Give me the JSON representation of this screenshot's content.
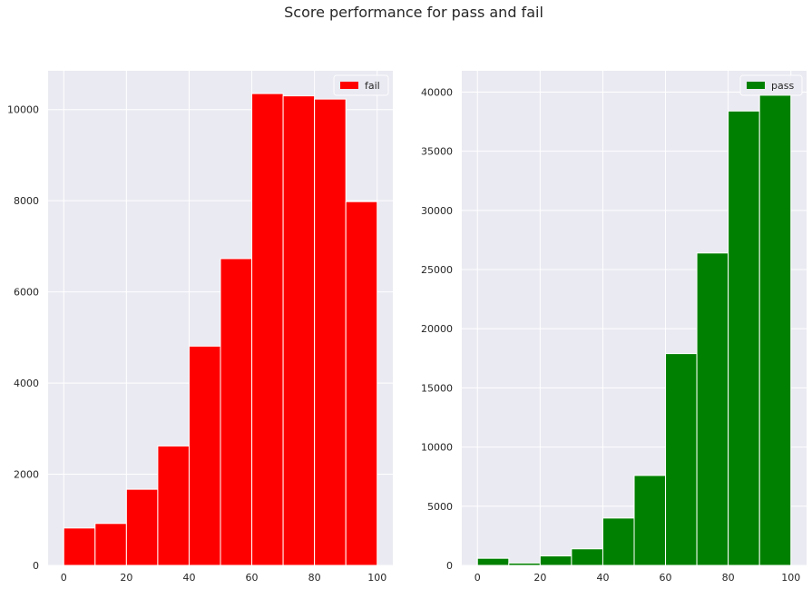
{
  "figure": {
    "suptitle": "Score performance for pass and fail",
    "background": "#ffffff",
    "axes_facecolor": "#eaeaf2",
    "grid_color": "#ffffff"
  },
  "chart_data": [
    {
      "type": "bar",
      "title": "",
      "xlabel": "",
      "ylabel": "",
      "bin_edges": [
        0,
        10,
        20,
        30,
        40,
        50,
        60,
        70,
        80,
        90,
        100
      ],
      "series": [
        {
          "name": "fail",
          "color": "#ff0000",
          "values": [
            820,
            920,
            1670,
            2620,
            4810,
            6730,
            10350,
            10300,
            10230,
            7980
          ]
        }
      ],
      "xlim": [
        -5,
        105
      ],
      "ylim": [
        0,
        10850
      ],
      "xticks": [
        0,
        20,
        40,
        60,
        80,
        100
      ],
      "yticks": [
        0,
        2000,
        4000,
        6000,
        8000,
        10000
      ],
      "grid": true,
      "legend": "top-right"
    },
    {
      "type": "bar",
      "title": "",
      "xlabel": "",
      "ylabel": "",
      "bin_edges": [
        0,
        10,
        20,
        30,
        40,
        50,
        60,
        70,
        80,
        90,
        100
      ],
      "series": [
        {
          "name": "pass",
          "color": "#008000",
          "values": [
            600,
            200,
            800,
            1400,
            4000,
            7600,
            17900,
            26400,
            38400,
            39800
          ]
        }
      ],
      "xlim": [
        -5,
        105
      ],
      "ylim": [
        0,
        41800
      ],
      "xticks": [
        0,
        20,
        40,
        60,
        80,
        100
      ],
      "yticks": [
        0,
        5000,
        10000,
        15000,
        20000,
        25000,
        30000,
        35000,
        40000
      ],
      "grid": true,
      "legend": "top-right"
    }
  ]
}
